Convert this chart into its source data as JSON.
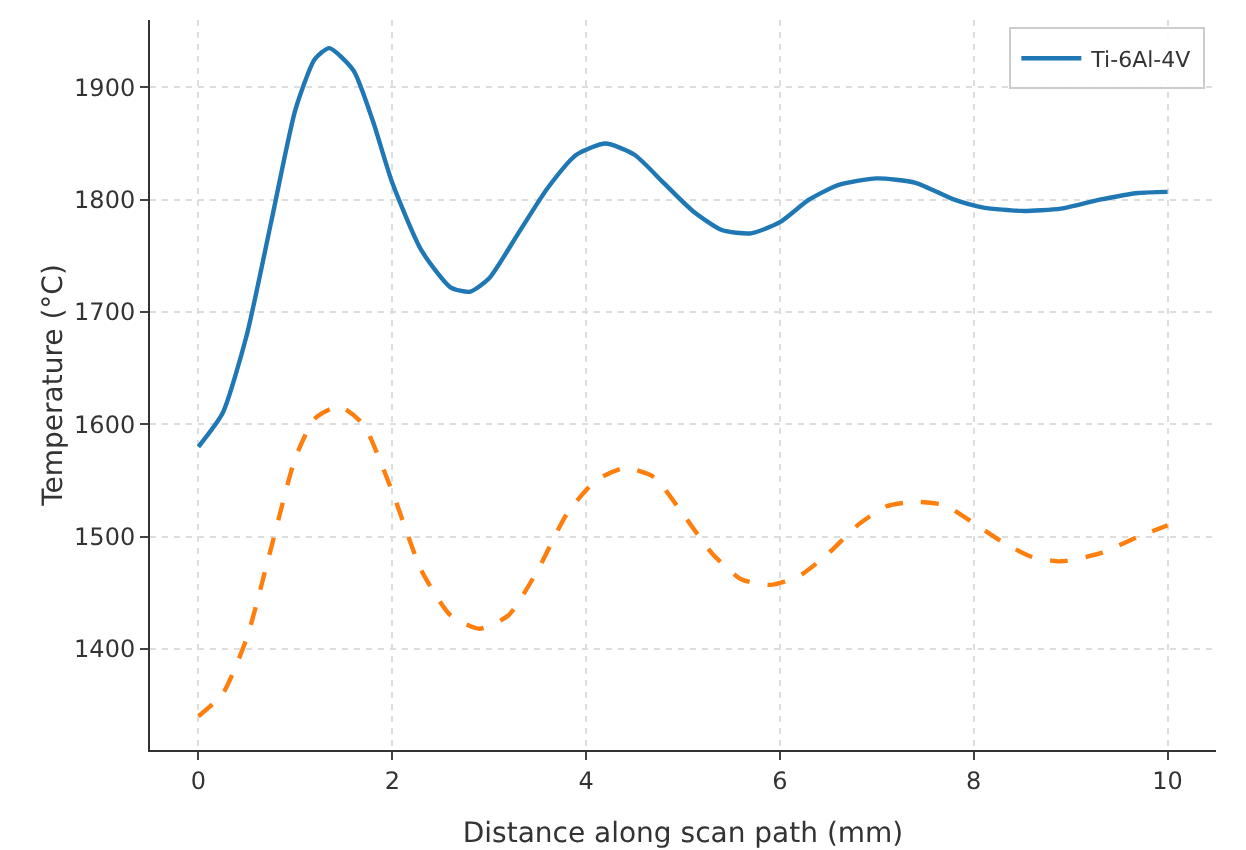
{
  "chart_data": {
    "type": "line",
    "xlabel": "Distance along scan path (mm)",
    "ylabel": "Temperature (°C)",
    "xlim": [
      -0.5,
      10.5
    ],
    "xticks": [
      0,
      2,
      4,
      6,
      8,
      10
    ],
    "ylim": [
      1310,
      1960
    ],
    "yticks": [
      1400,
      1500,
      1600,
      1700,
      1800,
      1900
    ],
    "grid": true,
    "legend": "top right",
    "marker": "none",
    "series": [
      {
        "name": "Ti-6Al-4V",
        "color": "#1f77b4",
        "line_style": "solid",
        "x": [
          0,
          0.25,
          0.5,
          0.75,
          1.0,
          1.2,
          1.35,
          1.6,
          1.8,
          2.0,
          2.3,
          2.6,
          2.8,
          3.0,
          3.3,
          3.6,
          3.9,
          4.2,
          4.5,
          4.8,
          5.1,
          5.4,
          5.7,
          6.0,
          6.3,
          6.6,
          7.0,
          7.4,
          7.8,
          8.1,
          8.5,
          8.9,
          9.3,
          9.7,
          10
        ],
        "values": [
          1580,
          1610,
          1680,
          1780,
          1880,
          1925,
          1935,
          1915,
          1870,
          1815,
          1755,
          1722,
          1718,
          1730,
          1770,
          1810,
          1840,
          1850,
          1840,
          1815,
          1790,
          1773,
          1770,
          1780,
          1800,
          1813,
          1819,
          1815,
          1800,
          1793,
          1790,
          1792,
          1800,
          1806,
          1807
        ]
      },
      {
        "color": "#ff7f0e",
        "line_style": "dashed",
        "x": [
          0,
          0.25,
          0.5,
          0.75,
          1.0,
          1.2,
          1.45,
          1.7,
          2.0,
          2.3,
          2.6,
          2.9,
          3.2,
          3.5,
          3.8,
          4.1,
          4.4,
          4.7,
          5.0,
          5.3,
          5.6,
          5.9,
          6.2,
          6.5,
          6.8,
          7.1,
          7.4,
          7.7,
          8.0,
          8.3,
          8.6,
          8.9,
          9.3,
          9.7,
          10
        ],
        "values": [
          1340,
          1360,
          1410,
          1490,
          1570,
          1605,
          1616,
          1600,
          1540,
          1470,
          1430,
          1418,
          1430,
          1470,
          1520,
          1550,
          1561,
          1553,
          1520,
          1485,
          1462,
          1457,
          1465,
          1485,
          1510,
          1527,
          1531,
          1528,
          1512,
          1495,
          1482,
          1478,
          1485,
          1500,
          1510
        ]
      }
    ]
  }
}
